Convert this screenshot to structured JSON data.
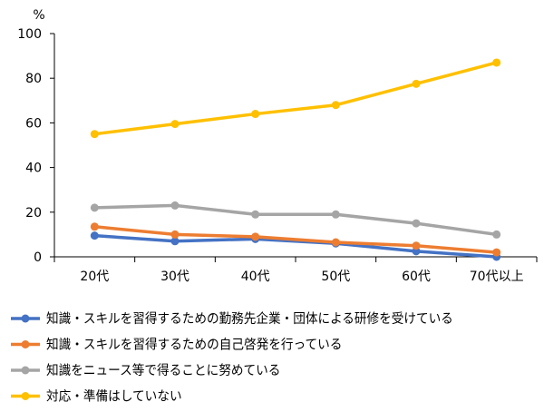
{
  "chart_data": {
    "type": "line",
    "ylabel": "%",
    "ylim": [
      0,
      100
    ],
    "yticks": [
      0,
      20,
      40,
      60,
      80,
      100
    ],
    "categories": [
      "20代",
      "30代",
      "40代",
      "50代",
      "60代",
      "70代以上"
    ],
    "grid": false,
    "legend_position": "bottom",
    "series": [
      {
        "name": "知識・スキルを習得するための勤務先企業・団体による研修を受けている",
        "color": "#4472C4",
        "values": [
          9.5,
          7,
          8,
          6,
          2.5,
          0
        ]
      },
      {
        "name": "知識・スキルを習得するための自己啓発を行っている",
        "color": "#ED7D31",
        "values": [
          13.5,
          10,
          9,
          6.5,
          5,
          2
        ]
      },
      {
        "name": "知識をニュース等で得ることに努めている",
        "color": "#A5A5A5",
        "values": [
          22,
          23,
          19,
          19,
          15,
          10
        ]
      },
      {
        "name": "対応・準備はしていない",
        "color": "#FFC000",
        "values": [
          55,
          59.5,
          64,
          68,
          77.5,
          87
        ]
      }
    ]
  }
}
